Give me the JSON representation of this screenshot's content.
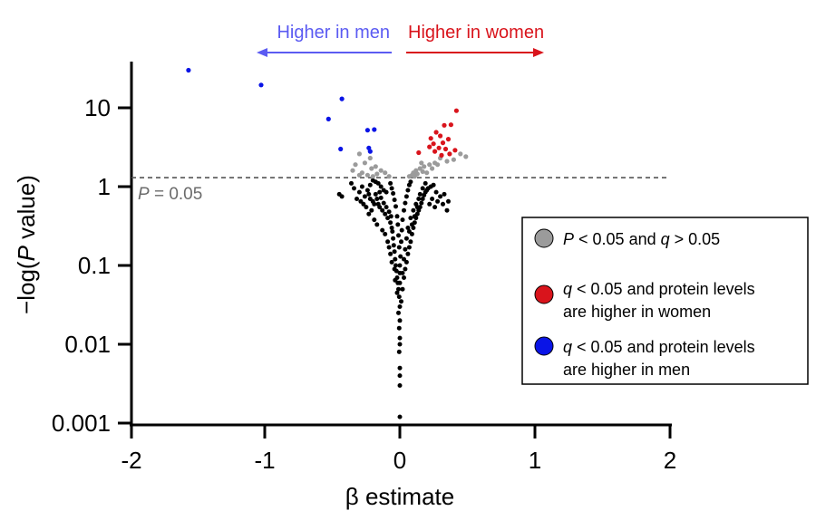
{
  "chart_data": {
    "type": "scatter",
    "xlabel": "β estimate",
    "ylabel_prefix": "−log(",
    "ylabel_italic": "P",
    "ylabel_suffix": " value)",
    "x_ticks": [
      "-2",
      "-1",
      "0",
      "1",
      "2"
    ],
    "y_ticks": [
      "0.001",
      "0.01",
      "0.1",
      "1",
      "10"
    ],
    "xlim": [
      -2,
      2
    ],
    "ylim": [
      0.001,
      40
    ],
    "y_scale": "log",
    "threshold": {
      "value": 1.3,
      "label_italic": "P",
      "label_rest": " = 0.05"
    },
    "direction_labels": {
      "left": "Higher in men",
      "right": "Higher in women"
    },
    "colors": {
      "men": "#0a14e6",
      "women": "#d9141c",
      "gray": "#9b9b9b",
      "black": "#000000",
      "threshold": "#555555",
      "threshold_label": "#6b6b6b",
      "left_arrow": "#5b5bf2",
      "right_arrow": "#d9141c"
    },
    "legend": {
      "position": "right",
      "items": [
        {
          "color": "gray",
          "lines": [
            [
              "P",
              " < 0.05 and "
            ],
            [
              "q",
              " > 0.05"
            ]
          ]
        },
        {
          "color": "women",
          "lines": [
            [
              "q",
              " < 0.05 and protein levels"
            ],
            [
              "",
              "are higher in women"
            ]
          ]
        },
        {
          "color": "men",
          "lines": [
            [
              "q",
              " < 0.05 and protein levels"
            ],
            [
              "",
              "are higher in men"
            ]
          ]
        }
      ]
    },
    "series": [
      {
        "group": "men",
        "points": [
          [
            -1.57,
            30
          ],
          [
            -1.03,
            19.5
          ],
          [
            -0.43,
            13
          ],
          [
            -0.53,
            7.2
          ],
          [
            -0.24,
            5.2
          ],
          [
            -0.19,
            5.3
          ],
          [
            -0.44,
            3.0
          ],
          [
            -0.23,
            3.1
          ],
          [
            -0.22,
            2.8
          ]
        ]
      },
      {
        "group": "women",
        "points": [
          [
            0.42,
            9.2
          ],
          [
            0.33,
            6.0
          ],
          [
            0.38,
            6.1
          ],
          [
            0.27,
            4.9
          ],
          [
            0.3,
            4.4
          ],
          [
            0.23,
            4.1
          ],
          [
            0.36,
            4.0
          ],
          [
            0.25,
            3.5
          ],
          [
            0.32,
            3.6
          ],
          [
            0.29,
            3.1
          ],
          [
            0.34,
            3.0
          ],
          [
            0.26,
            2.8
          ],
          [
            0.41,
            2.9
          ],
          [
            0.14,
            2.7
          ],
          [
            0.37,
            2.6
          ],
          [
            0.31,
            2.5
          ],
          [
            0.22,
            3.2
          ]
        ]
      },
      {
        "group": "gray",
        "points": [
          [
            -0.3,
            2.6
          ],
          [
            -0.22,
            2.3
          ],
          [
            -0.26,
            2.0
          ],
          [
            -0.18,
            1.8
          ],
          [
            -0.33,
            1.9
          ],
          [
            -0.14,
            1.6
          ],
          [
            -0.28,
            1.5
          ],
          [
            -0.21,
            1.7
          ],
          [
            -0.35,
            1.6
          ],
          [
            -0.11,
            1.5
          ],
          [
            -0.24,
            1.4
          ],
          [
            -0.17,
            1.45
          ],
          [
            -0.3,
            1.4
          ],
          [
            -0.08,
            1.35
          ],
          [
            -0.2,
            1.35
          ],
          [
            0.49,
            2.4
          ],
          [
            0.45,
            2.6
          ],
          [
            0.4,
            2.2
          ],
          [
            0.35,
            2.1
          ],
          [
            0.3,
            2.3
          ],
          [
            0.26,
            2.0
          ],
          [
            0.22,
            1.9
          ],
          [
            0.18,
            1.8
          ],
          [
            0.15,
            1.7
          ],
          [
            0.12,
            1.6
          ],
          [
            0.1,
            1.5
          ],
          [
            0.17,
            1.55
          ],
          [
            0.09,
            1.4
          ],
          [
            0.13,
            1.45
          ],
          [
            0.2,
            1.5
          ],
          [
            0.11,
            1.35
          ],
          [
            0.24,
            1.7
          ],
          [
            0.07,
            1.35
          ],
          [
            0.28,
            1.9
          ],
          [
            0.16,
            2.0
          ]
        ]
      },
      {
        "group": "black",
        "points": [
          [
            -0.45,
            0.8
          ],
          [
            -0.43,
            0.75
          ],
          [
            -0.36,
            1.1
          ],
          [
            -0.34,
            0.95
          ],
          [
            -0.3,
            0.85
          ],
          [
            -0.28,
            1.0
          ],
          [
            -0.26,
            0.75
          ],
          [
            -0.24,
            0.9
          ],
          [
            -0.22,
            0.7
          ],
          [
            -0.2,
            0.65
          ],
          [
            -0.18,
            0.8
          ],
          [
            -0.16,
            0.6
          ],
          [
            -0.15,
            0.55
          ],
          [
            -0.14,
            0.72
          ],
          [
            -0.13,
            0.5
          ],
          [
            -0.12,
            0.62
          ],
          [
            -0.11,
            0.45
          ],
          [
            -0.1,
            0.55
          ],
          [
            -0.09,
            0.4
          ],
          [
            -0.08,
            0.48
          ],
          [
            -0.07,
            0.35
          ],
          [
            -0.065,
            0.42
          ],
          [
            -0.06,
            0.3
          ],
          [
            -0.055,
            0.27
          ],
          [
            -0.05,
            0.22
          ],
          [
            -0.045,
            0.18
          ],
          [
            -0.04,
            0.15
          ],
          [
            -0.035,
            0.12
          ],
          [
            -0.03,
            0.1
          ],
          [
            -0.025,
            0.085
          ],
          [
            -0.02,
            0.07
          ],
          [
            -0.015,
            0.06
          ],
          [
            -0.01,
            0.05
          ],
          [
            -0.005,
            0.04
          ],
          [
            0.0,
            0.03
          ],
          [
            -0.01,
            0.025
          ],
          [
            0.0,
            0.02
          ],
          [
            -0.005,
            0.016
          ],
          [
            0.0,
            0.012
          ],
          [
            0.0,
            0.01
          ],
          [
            -0.005,
            0.008
          ],
          [
            0.0,
            0.005
          ],
          [
            0.0,
            0.004
          ],
          [
            0.0,
            0.003
          ],
          [
            0.0,
            0.0012
          ],
          [
            -0.25,
            0.55
          ],
          [
            -0.19,
            0.38
          ],
          [
            -0.23,
            0.45
          ],
          [
            -0.17,
            0.33
          ],
          [
            -0.21,
            0.5
          ],
          [
            -0.27,
            0.6
          ],
          [
            -0.32,
            0.7
          ],
          [
            -0.29,
            0.65
          ],
          [
            -0.13,
            0.28
          ],
          [
            -0.11,
            0.25
          ],
          [
            -0.09,
            0.2
          ],
          [
            -0.08,
            0.17
          ],
          [
            -0.07,
            0.14
          ],
          [
            -0.06,
            0.11
          ],
          [
            -0.04,
            0.09
          ],
          [
            -0.035,
            0.065
          ],
          [
            -0.02,
            0.045
          ],
          [
            0.02,
            0.05
          ],
          [
            0.03,
            0.07
          ],
          [
            0.04,
            0.09
          ],
          [
            0.05,
            0.11
          ],
          [
            0.06,
            0.14
          ],
          [
            0.07,
            0.17
          ],
          [
            0.08,
            0.2
          ],
          [
            0.09,
            0.25
          ],
          [
            0.1,
            0.3
          ],
          [
            0.11,
            0.35
          ],
          [
            0.12,
            0.4
          ],
          [
            0.13,
            0.45
          ],
          [
            0.14,
            0.5
          ],
          [
            0.15,
            0.55
          ],
          [
            0.16,
            0.62
          ],
          [
            0.17,
            0.7
          ],
          [
            0.18,
            0.78
          ],
          [
            0.19,
            0.85
          ],
          [
            0.2,
            0.9
          ],
          [
            0.21,
            0.95
          ],
          [
            0.23,
            1.0
          ],
          [
            0.25,
            1.05
          ],
          [
            0.27,
            0.85
          ],
          [
            0.3,
            0.75
          ],
          [
            0.33,
            0.8
          ],
          [
            0.36,
            0.65
          ],
          [
            0.06,
            0.3
          ],
          [
            0.08,
            0.4
          ],
          [
            0.1,
            0.5
          ],
          [
            0.12,
            0.6
          ],
          [
            0.14,
            0.7
          ],
          [
            0.05,
            0.22
          ],
          [
            0.07,
            0.27
          ],
          [
            0.09,
            0.33
          ],
          [
            0.11,
            0.42
          ],
          [
            0.13,
            0.55
          ],
          [
            0.15,
            0.8
          ],
          [
            0.17,
            0.95
          ],
          [
            0.19,
            1.1
          ],
          [
            0.04,
            0.16
          ],
          [
            0.03,
            0.12
          ],
          [
            0.02,
            0.08
          ],
          [
            0.01,
            0.035
          ],
          [
            0.0,
            0.06
          ],
          [
            0.0,
            0.08
          ],
          [
            0.0,
            0.1
          ],
          [
            0.005,
            0.13
          ],
          [
            -0.005,
            0.17
          ],
          [
            0.01,
            0.2
          ],
          [
            -0.01,
            0.24
          ],
          [
            0.015,
            0.28
          ],
          [
            -0.015,
            0.33
          ],
          [
            0.02,
            0.38
          ],
          [
            -0.02,
            0.42
          ],
          [
            0.03,
            0.5
          ],
          [
            -0.03,
            0.56
          ],
          [
            0.04,
            0.62
          ],
          [
            -0.04,
            0.68
          ],
          [
            0.05,
            0.75
          ],
          [
            -0.05,
            0.82
          ],
          [
            0.06,
            0.9
          ],
          [
            -0.06,
            0.95
          ],
          [
            0.07,
            1.05
          ],
          [
            -0.07,
            1.1
          ],
          [
            0.08,
            1.15
          ],
          [
            -0.1,
            0.85
          ],
          [
            -0.12,
            0.9
          ],
          [
            -0.14,
            1.0
          ],
          [
            -0.16,
            1.1
          ],
          [
            -0.18,
            1.15
          ],
          [
            -0.2,
            1.2
          ],
          [
            -0.22,
            1.05
          ],
          [
            -0.15,
            0.85
          ],
          [
            -0.17,
            0.7
          ],
          [
            -0.19,
            0.6
          ],
          [
            -0.23,
            0.8
          ],
          [
            0.22,
            0.6
          ],
          [
            0.24,
            0.7
          ],
          [
            0.26,
            0.55
          ],
          [
            0.28,
            0.65
          ],
          [
            0.32,
            0.6
          ],
          [
            0.35,
            0.5
          ]
        ]
      }
    ]
  }
}
